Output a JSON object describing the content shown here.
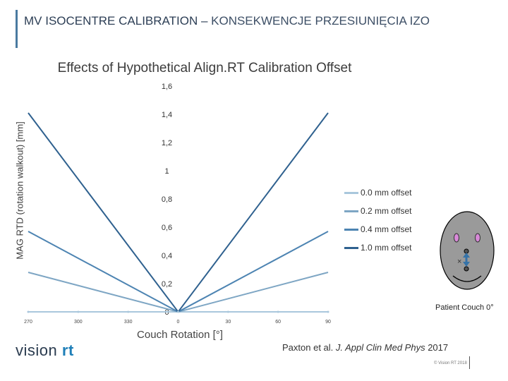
{
  "slide": {
    "title_part1": "MV ISOCENTRE CALIBRATION –",
    "title_part2": " KONSEKWENCJE PRZESIUNIĘCIA IZO",
    "couch_label": "Patient Couch 0°",
    "logo_main": "visi",
    "logo_o": "o",
    "logo_n": "n",
    "logo_rt": "rt",
    "citation_author": "Paxton et al. ",
    "citation_journal": "J. Appl Clin Med Phys",
    "citation_year": " 2017",
    "copyright": "© Vision RT 2018"
  },
  "chart_data": {
    "type": "line",
    "title": "Effects of Hypothetical Align.RT Calibration Offset",
    "xlabel": "Couch Rotation [°]",
    "ylabel": "MAG RTD (rotation walkout) [mm]",
    "ylim": [
      0,
      1.6
    ],
    "yticks": [
      "0",
      "0,2",
      "0,4",
      "0,6",
      "0,8",
      "1",
      "1,2",
      "1,4",
      "1,6"
    ],
    "x_positions": [
      -90,
      -60,
      -30,
      0,
      30,
      60,
      90
    ],
    "x_tick_labels": [
      "270",
      "300",
      "330",
      "0",
      "30",
      "60",
      "90"
    ],
    "x": [
      -90,
      0,
      90
    ],
    "series": [
      {
        "name": "0.0 mm offset",
        "color": "#a9c7dc",
        "values": [
          0.0,
          0.0,
          0.0
        ]
      },
      {
        "name": "0.2 mm offset",
        "color": "#7ea6c4",
        "values": [
          0.28,
          0.0,
          0.28
        ]
      },
      {
        "name": "0.4 mm offset",
        "color": "#4d84b2",
        "values": [
          0.57,
          0.0,
          0.57
        ]
      },
      {
        "name": "1.0 mm offset",
        "color": "#2f618f",
        "values": [
          1.41,
          0.0,
          1.41
        ]
      }
    ],
    "legend_position": "right"
  }
}
